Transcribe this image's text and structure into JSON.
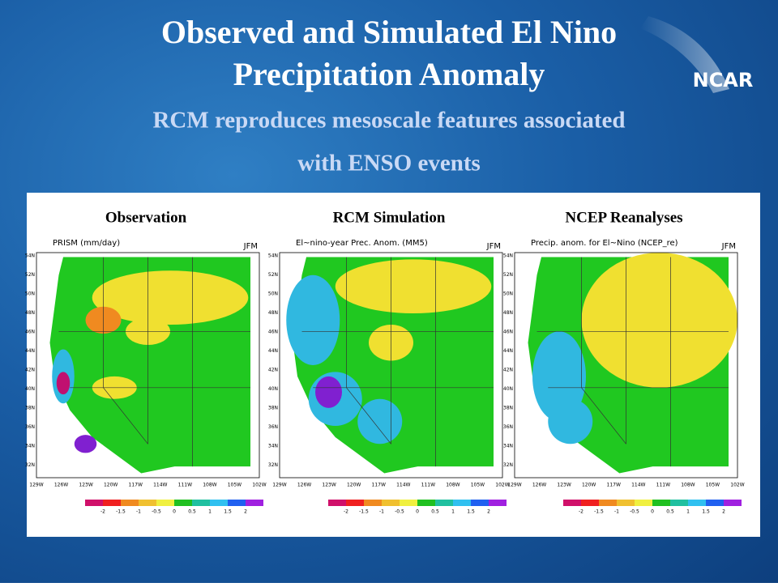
{
  "header": {
    "title_lines": [
      "Observed and Simulated El Nino",
      "Precipitation Anomaly"
    ],
    "subtitle_lines": [
      "RCM reproduces mesoscale features associated",
      "with ENSO events"
    ],
    "logo": "NCAR"
  },
  "map_axes": {
    "lat_labels": [
      "54N",
      "52N",
      "50N",
      "48N",
      "46N",
      "44N",
      "42N",
      "40N",
      "38N",
      "36N",
      "34N",
      "32N"
    ],
    "lon_labels": [
      "129W",
      "126W",
      "123W",
      "120W",
      "117W",
      "114W",
      "111W",
      "108W",
      "105W",
      "102W"
    ],
    "colorbar_labels": [
      "-2",
      "-1.5",
      "-1",
      "-0.5",
      "0",
      "0.5",
      "1",
      "1.5",
      "2"
    ]
  },
  "panels": [
    {
      "heading": "Observation",
      "map_title": "PRISM  (mm/day)",
      "season": "JFM"
    },
    {
      "heading": "RCM Simulation",
      "map_title": "El~nino-year Prec. Anom.   (MM5)",
      "season": "JFM"
    },
    {
      "heading": "NCEP Reanalyses",
      "map_title": "Precip. anom. for El~Nino (NCEP_re)",
      "season": "JFM"
    }
  ]
}
